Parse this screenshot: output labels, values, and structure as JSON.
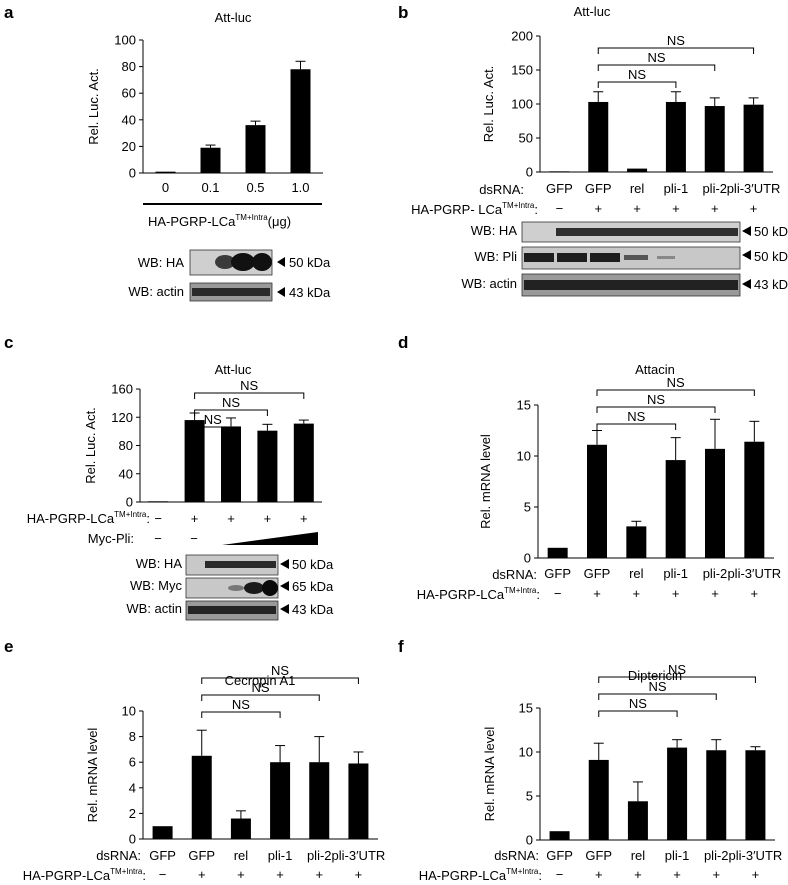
{
  "figure": {
    "panel_a": {
      "letter": "a",
      "title": "Att-luc",
      "ylabel": "Rel. Luc. Act.",
      "xlabel_main": "HA-PGRP-LCa",
      "xlabel_sup": "TM+Intra",
      "xlabel_suffix": "(μg)",
      "blots": [
        {
          "label": "WB: HA",
          "size": "50 kDa"
        },
        {
          "label": "WB: actin",
          "size": "43 kDa"
        }
      ]
    },
    "panel_b": {
      "letter": "b",
      "title": "Att-luc",
      "ylabel": "Rel. Luc. Act.",
      "row_labels": [
        "dsRNA:",
        "HA-PGRP- LCa"
      ],
      "row_sup": "TM+Intra",
      "ha_row": [
        "−",
        "+",
        "+",
        "+",
        "+",
        "+"
      ],
      "blots": [
        {
          "label": "WB: HA",
          "size": "50 kDa"
        },
        {
          "label": "WB: Pli",
          "size": "50 kDa"
        },
        {
          "label": "WB: actin",
          "size": "43 kDa"
        }
      ]
    },
    "panel_c": {
      "letter": "c",
      "title": "Att-luc",
      "ylabel": "Rel. Luc. Act.",
      "row_labels": [
        "HA-PGRP-LCa",
        "Myc-Pli:"
      ],
      "row_sup": "TM+Intra",
      "ha_row": [
        "−",
        "+",
        "+",
        "+",
        "+"
      ],
      "myc_row": [
        "−",
        "−"
      ],
      "blots": [
        {
          "label": "WB: HA",
          "size": "50 kDa"
        },
        {
          "label": "WB: Myc",
          "size": "65 kDa"
        },
        {
          "label": "WB: actin",
          "size": "43 kDa"
        }
      ]
    },
    "panel_d": {
      "letter": "d",
      "title": "Attacin",
      "ylabel": "Rel. mRNA level"
    },
    "panel_e": {
      "letter": "e",
      "title": "Cecropin A1",
      "ylabel": "Rel. mRNA level"
    },
    "panel_f": {
      "letter": "f",
      "title": "Diptericin",
      "ylabel": "Rel. mRNA level"
    },
    "mrna_rows": {
      "dsrna_label": "dsRNA:",
      "ha_label": "HA-PGRP-LCa",
      "ha_sup": "TM+Intra",
      "ha_row": [
        "−",
        "+",
        "+",
        "+",
        "+",
        "+"
      ]
    },
    "sig_label": "NS"
  },
  "chart_data": [
    {
      "id": "a",
      "type": "bar",
      "title": "Att-luc",
      "categories": [
        "0",
        "0.1",
        "0.5",
        "1.0"
      ],
      "values": [
        1,
        19,
        36,
        78
      ],
      "errors": [
        0,
        2,
        3,
        6
      ],
      "ylim": [
        0,
        100
      ],
      "yticks": [
        0,
        20,
        40,
        60,
        80,
        100
      ],
      "ylabel": "Rel. Luc. Act.",
      "xlabel": "HA-PGRP-LCaTM+Intra(μg)",
      "sig": []
    },
    {
      "id": "b",
      "type": "bar",
      "title": "Att-luc",
      "categories": [
        "GFP",
        "GFP",
        "rel",
        "pli-1",
        "pli-2",
        "pli-3′UTR"
      ],
      "values": [
        1,
        103,
        5,
        103,
        97,
        99
      ],
      "errors": [
        0,
        15,
        0,
        15,
        12,
        10
      ],
      "ylim": [
        0,
        200
      ],
      "yticks": [
        0,
        50,
        100,
        150,
        200
      ],
      "ylabel": "Rel. Luc. Act.",
      "sig": [
        {
          "from": 1,
          "to": 3,
          "label": "NS"
        },
        {
          "from": 1,
          "to": 4,
          "label": "NS"
        },
        {
          "from": 1,
          "to": 5,
          "label": "NS"
        }
      ]
    },
    {
      "id": "c",
      "type": "bar",
      "title": "Att-luc",
      "categories": [
        "",
        "",
        "",
        "",
        ""
      ],
      "values": [
        1,
        116,
        107,
        101,
        111
      ],
      "errors": [
        0,
        10,
        12,
        9,
        5
      ],
      "ylim": [
        0,
        160
      ],
      "yticks": [
        0,
        40,
        80,
        120,
        160
      ],
      "ylabel": "Rel. Luc. Act.",
      "sig": [
        {
          "from": 1,
          "to": 2,
          "label": "NS"
        },
        {
          "from": 1,
          "to": 3,
          "label": "NS"
        },
        {
          "from": 1,
          "to": 4,
          "label": "NS"
        }
      ]
    },
    {
      "id": "d",
      "type": "bar",
      "title": "Attacin",
      "categories": [
        "GFP",
        "GFP",
        "rel",
        "pli-1",
        "pli-2",
        "pli-3′UTR"
      ],
      "values": [
        1,
        11.1,
        3.1,
        9.6,
        10.7,
        11.4
      ],
      "errors": [
        0,
        1.4,
        0.5,
        2.2,
        2.9,
        2.0
      ],
      "ylim": [
        0,
        15
      ],
      "yticks": [
        0,
        5,
        10,
        15
      ],
      "ylabel": "Rel. mRNA level",
      "sig": [
        {
          "from": 1,
          "to": 3,
          "label": "NS"
        },
        {
          "from": 1,
          "to": 4,
          "label": "NS"
        },
        {
          "from": 1,
          "to": 5,
          "label": "NS"
        }
      ]
    },
    {
      "id": "e",
      "type": "bar",
      "title": "Cecropin A1",
      "categories": [
        "GFP",
        "GFP",
        "rel",
        "pli-1",
        "pli-2",
        "pli-3′UTR"
      ],
      "values": [
        1,
        6.5,
        1.6,
        6.0,
        6.0,
        5.9
      ],
      "errors": [
        0,
        2.0,
        0.6,
        1.3,
        2.0,
        0.9
      ],
      "ylim": [
        0,
        10
      ],
      "yticks": [
        0,
        2,
        4,
        6,
        8,
        10
      ],
      "ylabel": "Rel. mRNA level",
      "sig": [
        {
          "from": 1,
          "to": 3,
          "label": "NS"
        },
        {
          "from": 1,
          "to": 4,
          "label": "NS"
        },
        {
          "from": 1,
          "to": 5,
          "label": "NS"
        }
      ]
    },
    {
      "id": "f",
      "type": "bar",
      "title": "Diptericin",
      "categories": [
        "GFP",
        "GFP",
        "rel",
        "pli-1",
        "pli-2",
        "pli-3′UTR"
      ],
      "values": [
        1,
        9.1,
        4.4,
        10.5,
        10.2,
        10.2
      ],
      "errors": [
        0,
        1.9,
        2.2,
        0.9,
        1.2,
        0.4
      ],
      "ylim": [
        0,
        15
      ],
      "yticks": [
        0,
        5,
        10,
        15
      ],
      "ylabel": "Rel. mRNA level",
      "sig": [
        {
          "from": 1,
          "to": 3,
          "label": "NS"
        },
        {
          "from": 1,
          "to": 4,
          "label": "NS"
        },
        {
          "from": 1,
          "to": 5,
          "label": "NS"
        }
      ]
    }
  ]
}
